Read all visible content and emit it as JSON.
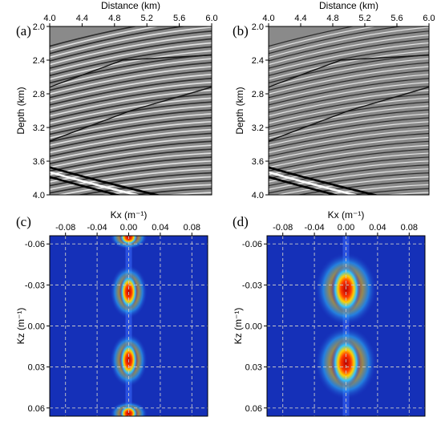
{
  "panels": [
    {
      "label": "(a)",
      "chart_data": {
        "type": "heatmap",
        "description_kind": "seismic migrated image",
        "xlabel": "Distance (km)",
        "ylabel": "Depth (km)",
        "xlim": [
          4.0,
          6.0
        ],
        "ylim": [
          4.0,
          2.0
        ],
        "xticks": [
          "4.0",
          "4.4",
          "4.8",
          "5.2",
          "5.6",
          "6.0"
        ],
        "yticks": [
          "2.0",
          "2.4",
          "2.8",
          "3.2",
          "3.6",
          "4.0"
        ],
        "colormap": "grayscale"
      }
    },
    {
      "label": "(b)",
      "chart_data": {
        "type": "heatmap",
        "description_kind": "seismic migrated image",
        "xlabel": "Distance (km)",
        "ylabel": "Depth (km)",
        "xlim": [
          4.0,
          6.0
        ],
        "ylim": [
          4.0,
          2.0
        ],
        "xticks": [
          "4.0",
          "4.4",
          "4.8",
          "5.2",
          "5.6",
          "6.0"
        ],
        "yticks": [
          "2.0",
          "2.4",
          "2.8",
          "3.2",
          "3.6",
          "4.0"
        ],
        "colormap": "grayscale"
      }
    },
    {
      "label": "(c)",
      "chart_data": {
        "type": "heatmap",
        "description_kind": "wavenumber spectrum",
        "xlabel": "Kx (m⁻¹)",
        "ylabel": "Kz (m⁻¹)",
        "xlim": [
          -0.1,
          0.1
        ],
        "ylim": [
          0.066,
          -0.066
        ],
        "xticks": [
          "-0.08",
          "-0.04",
          "0.00",
          "0.04",
          "0.08"
        ],
        "yticks": [
          "-0.06",
          "-0.03",
          "0.00",
          "0.03",
          "0.06"
        ],
        "colormap": "jet",
        "grid": true,
        "energy_lobes_kz": [
          -0.065,
          -0.025,
          0.025,
          0.064
        ]
      }
    },
    {
      "label": "(d)",
      "chart_data": {
        "type": "heatmap",
        "description_kind": "wavenumber spectrum",
        "xlabel": "Kx (m⁻¹)",
        "ylabel": "Kz (m⁻¹)",
        "xlim": [
          -0.1,
          0.1
        ],
        "ylim": [
          0.066,
          -0.066
        ],
        "xticks": [
          "-0.08",
          "-0.04",
          "0.00",
          "0.04",
          "0.08"
        ],
        "yticks": [
          "-0.06",
          "-0.03",
          "0.00",
          "0.03",
          "0.06"
        ],
        "colormap": "jet",
        "grid": true,
        "energy_lobes_kz": [
          -0.027,
          0.027
        ]
      }
    }
  ]
}
